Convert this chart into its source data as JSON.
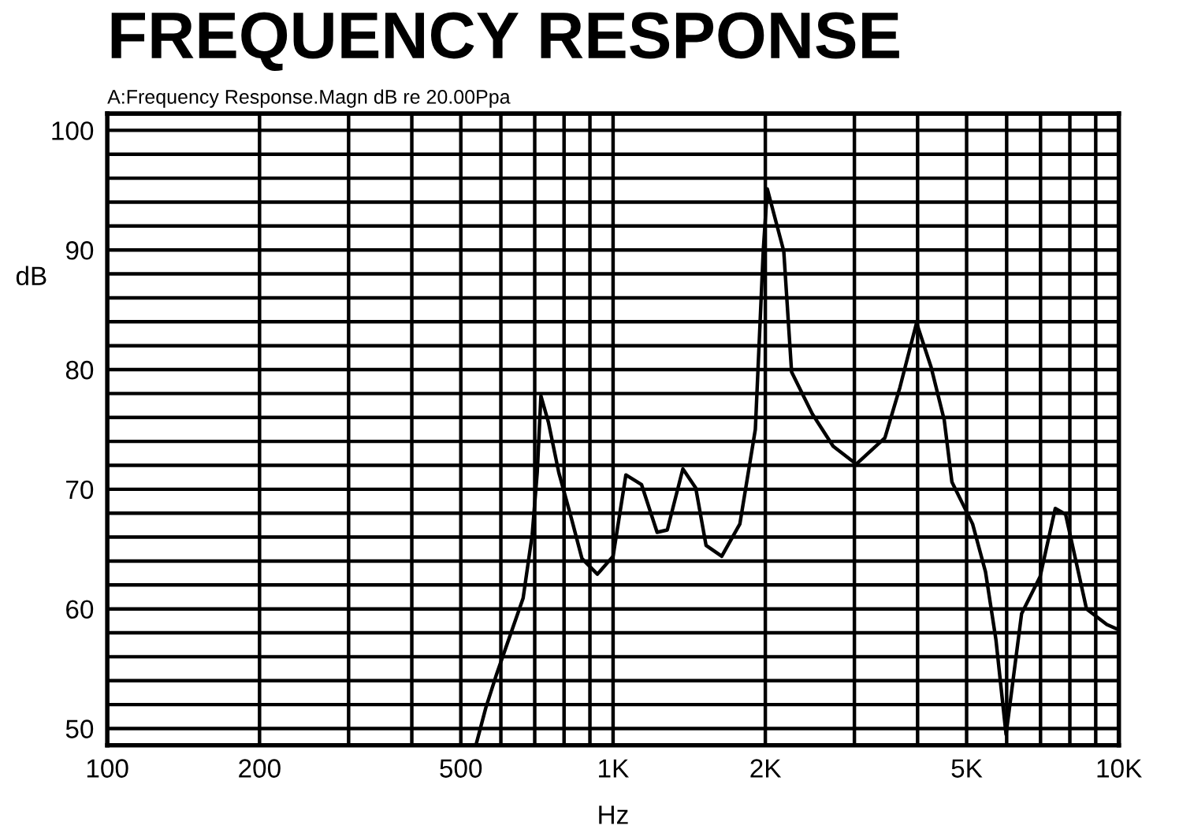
{
  "chart_data": {
    "type": "line",
    "title": "FREQUENCY RESPONSE",
    "subtitle": "A:Frequency Response.Magn dB re 20.00Ppa",
    "xlabel": "Hz",
    "ylabel": "dB",
    "log": "x",
    "grid": true,
    "marker": "none",
    "line_style": "solid",
    "xlim": [
      100,
      10000
    ],
    "xticks": [
      100,
      200,
      500,
      {
        "value": 1000,
        "label": "1K"
      },
      {
        "value": 2000,
        "label": "2K"
      },
      {
        "value": 5000,
        "label": "5K"
      },
      {
        "value": 10000,
        "label": "10K"
      }
    ],
    "ylim": [
      48.6,
      101.4
    ],
    "yticks": [
      50,
      60,
      70,
      80,
      90,
      100
    ],
    "series": [
      {
        "color": "#000000",
        "x": [
          537,
          560,
          589,
          632,
          664,
          692,
          708,
          720,
          745,
          781,
          828,
          868,
          931,
          1000,
          1060,
          1138,
          1222,
          1280,
          1374,
          1457,
          1527,
          1640,
          1781,
          1911,
          1981,
          2018,
          2175,
          2254,
          2477,
          2723,
          3027,
          3447,
          3690,
          3981,
          4254,
          4515,
          4677,
          5138,
          5449,
          5715,
          5984,
          6422,
          6987,
          7486,
          7847,
          8630,
          9466,
          9940
        ],
        "values": [
          48.8,
          51.7,
          54.6,
          58.3,
          60.9,
          66.2,
          71.4,
          77.8,
          75.6,
          71.4,
          67.5,
          64.2,
          62.9,
          64.4,
          71.2,
          70.4,
          66.4,
          66.6,
          71.7,
          70.1,
          65.3,
          64.4,
          67.1,
          75.0,
          89.9,
          95.1,
          89.9,
          79.8,
          76.3,
          73.6,
          72.1,
          74.3,
          78.5,
          83.9,
          80.2,
          75.8,
          70.6,
          67.1,
          63.1,
          57.4,
          49.5,
          59.6,
          62.7,
          68.4,
          67.9,
          60.0,
          58.7,
          58.3
        ]
      }
    ]
  }
}
